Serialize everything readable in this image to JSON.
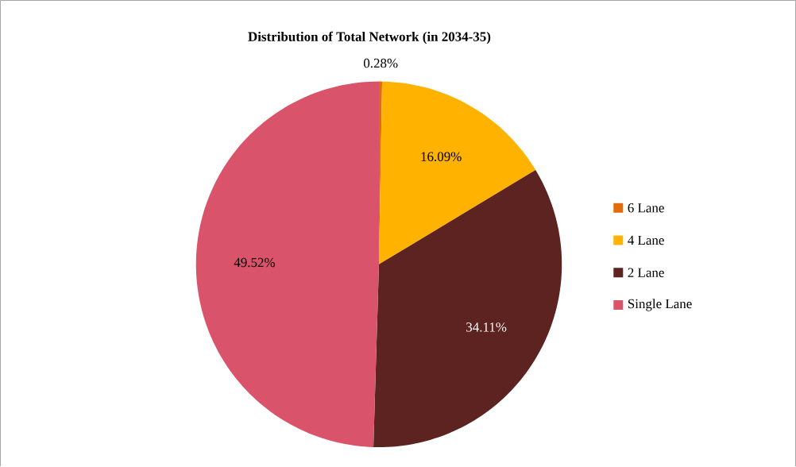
{
  "chart_data": {
    "type": "pie",
    "title": "Distribution of Total Network (in 2034-35)",
    "categories": [
      "6 Lane",
      "4 Lane",
      "2 Lane",
      "Single Lane"
    ],
    "values": [
      0.28,
      16.09,
      34.11,
      49.52
    ],
    "colors": [
      "#e26b0a",
      "#ffb300",
      "#5c2320",
      "#d9536a"
    ],
    "value_labels": [
      "0.28%",
      "16.09%",
      "34.11%",
      "49.52%"
    ],
    "legend": "right"
  }
}
